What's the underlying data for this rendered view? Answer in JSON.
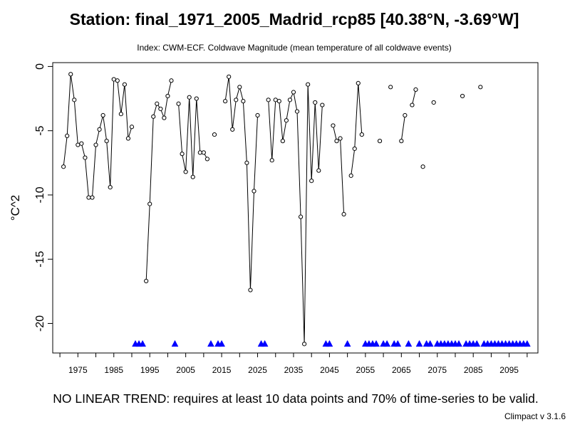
{
  "chart_data": {
    "type": "line",
    "title": "Station: final_1971_2005_Madrid_rcp85 [40.38°N, -3.69°W]",
    "subtitle": "Index: CWM-ECF. Coldwave Magnitude (mean temperature of all coldwave events)",
    "ylabel": "°C^2",
    "xlabel": "",
    "xlim": [
      1968,
      2103
    ],
    "ylim": [
      -22.3,
      0.3
    ],
    "grid": false,
    "x_ticks": [
      1975,
      1985,
      1995,
      2005,
      2015,
      2025,
      2035,
      2045,
      2055,
      2065,
      2075,
      2085,
      2095
    ],
    "y_ticks": [
      0,
      -5,
      -10,
      -15,
      -20
    ],
    "series": [
      {
        "marker": "open-circle",
        "connect": "consecutive-years-only",
        "x": [
          1971,
          1972,
          1973,
          1974,
          1975,
          1976,
          1977,
          1978,
          1979,
          1980,
          1981,
          1982,
          1983,
          1984,
          1985,
          1986,
          1987,
          1988,
          1989,
          1990,
          1994,
          1995,
          1996,
          1997,
          1998,
          1999,
          2000,
          2001,
          2003,
          2004,
          2005,
          2006,
          2007,
          2008,
          2009,
          2010,
          2011,
          2013,
          2016,
          2017,
          2018,
          2019,
          2020,
          2021,
          2022,
          2023,
          2024,
          2025,
          2028,
          2029,
          2030,
          2031,
          2032,
          2033,
          2034,
          2035,
          2036,
          2037,
          2038,
          2039,
          2040,
          2041,
          2042,
          2043,
          2046,
          2047,
          2048,
          2049,
          2051,
          2052,
          2053,
          2054,
          2059,
          2062,
          2065,
          2066,
          2068,
          2069,
          2071,
          2074,
          2082,
          2087
        ],
        "values": [
          -7.8,
          -5.4,
          -0.6,
          -2.6,
          -6.1,
          -6.0,
          -7.1,
          -10.2,
          -10.2,
          -6.1,
          -4.9,
          -3.8,
          -5.8,
          -9.4,
          -1.0,
          -1.1,
          -3.7,
          -1.4,
          -5.6,
          -4.7,
          -16.7,
          -10.7,
          -3.9,
          -2.9,
          -3.3,
          -4.0,
          -2.3,
          -1.1,
          -2.9,
          -6.8,
          -8.2,
          -2.4,
          -8.6,
          -2.5,
          -6.7,
          -6.7,
          -7.2,
          -5.3,
          -2.7,
          -0.8,
          -4.9,
          -2.6,
          -1.6,
          -2.7,
          -7.5,
          -17.4,
          -9.7,
          -3.8,
          -2.6,
          -7.3,
          -2.6,
          -2.7,
          -5.8,
          -4.2,
          -2.6,
          -2.0,
          -3.5,
          -11.7,
          -21.6,
          -1.4,
          -8.9,
          -2.8,
          -8.1,
          -3.0,
          -4.6,
          -5.8,
          -5.6,
          -11.5,
          -8.5,
          -6.4,
          -1.3,
          -5.3,
          -5.8,
          -1.6,
          -5.8,
          -3.8,
          -3.0,
          -1.8,
          -7.8,
          -2.8,
          -2.3,
          -1.6
        ]
      },
      {
        "name": "missing years",
        "marker": "blue-triangle",
        "color": "#0000ff",
        "y": -21.6,
        "x": [
          1991,
          1992,
          1993,
          2002,
          2012,
          2014,
          2015,
          2026,
          2027,
          2044,
          2045,
          2050,
          2055,
          2056,
          2057,
          2058,
          2060,
          2061,
          2063,
          2064,
          2067,
          2070,
          2072,
          2073,
          2075,
          2076,
          2077,
          2078,
          2079,
          2080,
          2081,
          2083,
          2084,
          2085,
          2086,
          2088,
          2089,
          2090,
          2091,
          2092,
          2093,
          2094,
          2095,
          2096,
          2097,
          2098,
          2099,
          2100
        ]
      }
    ]
  },
  "footnote": "NO LINEAR TREND: requires at least 10 data points and 70% of time-series to be valid.",
  "version": "Climpact v 3.1.6"
}
